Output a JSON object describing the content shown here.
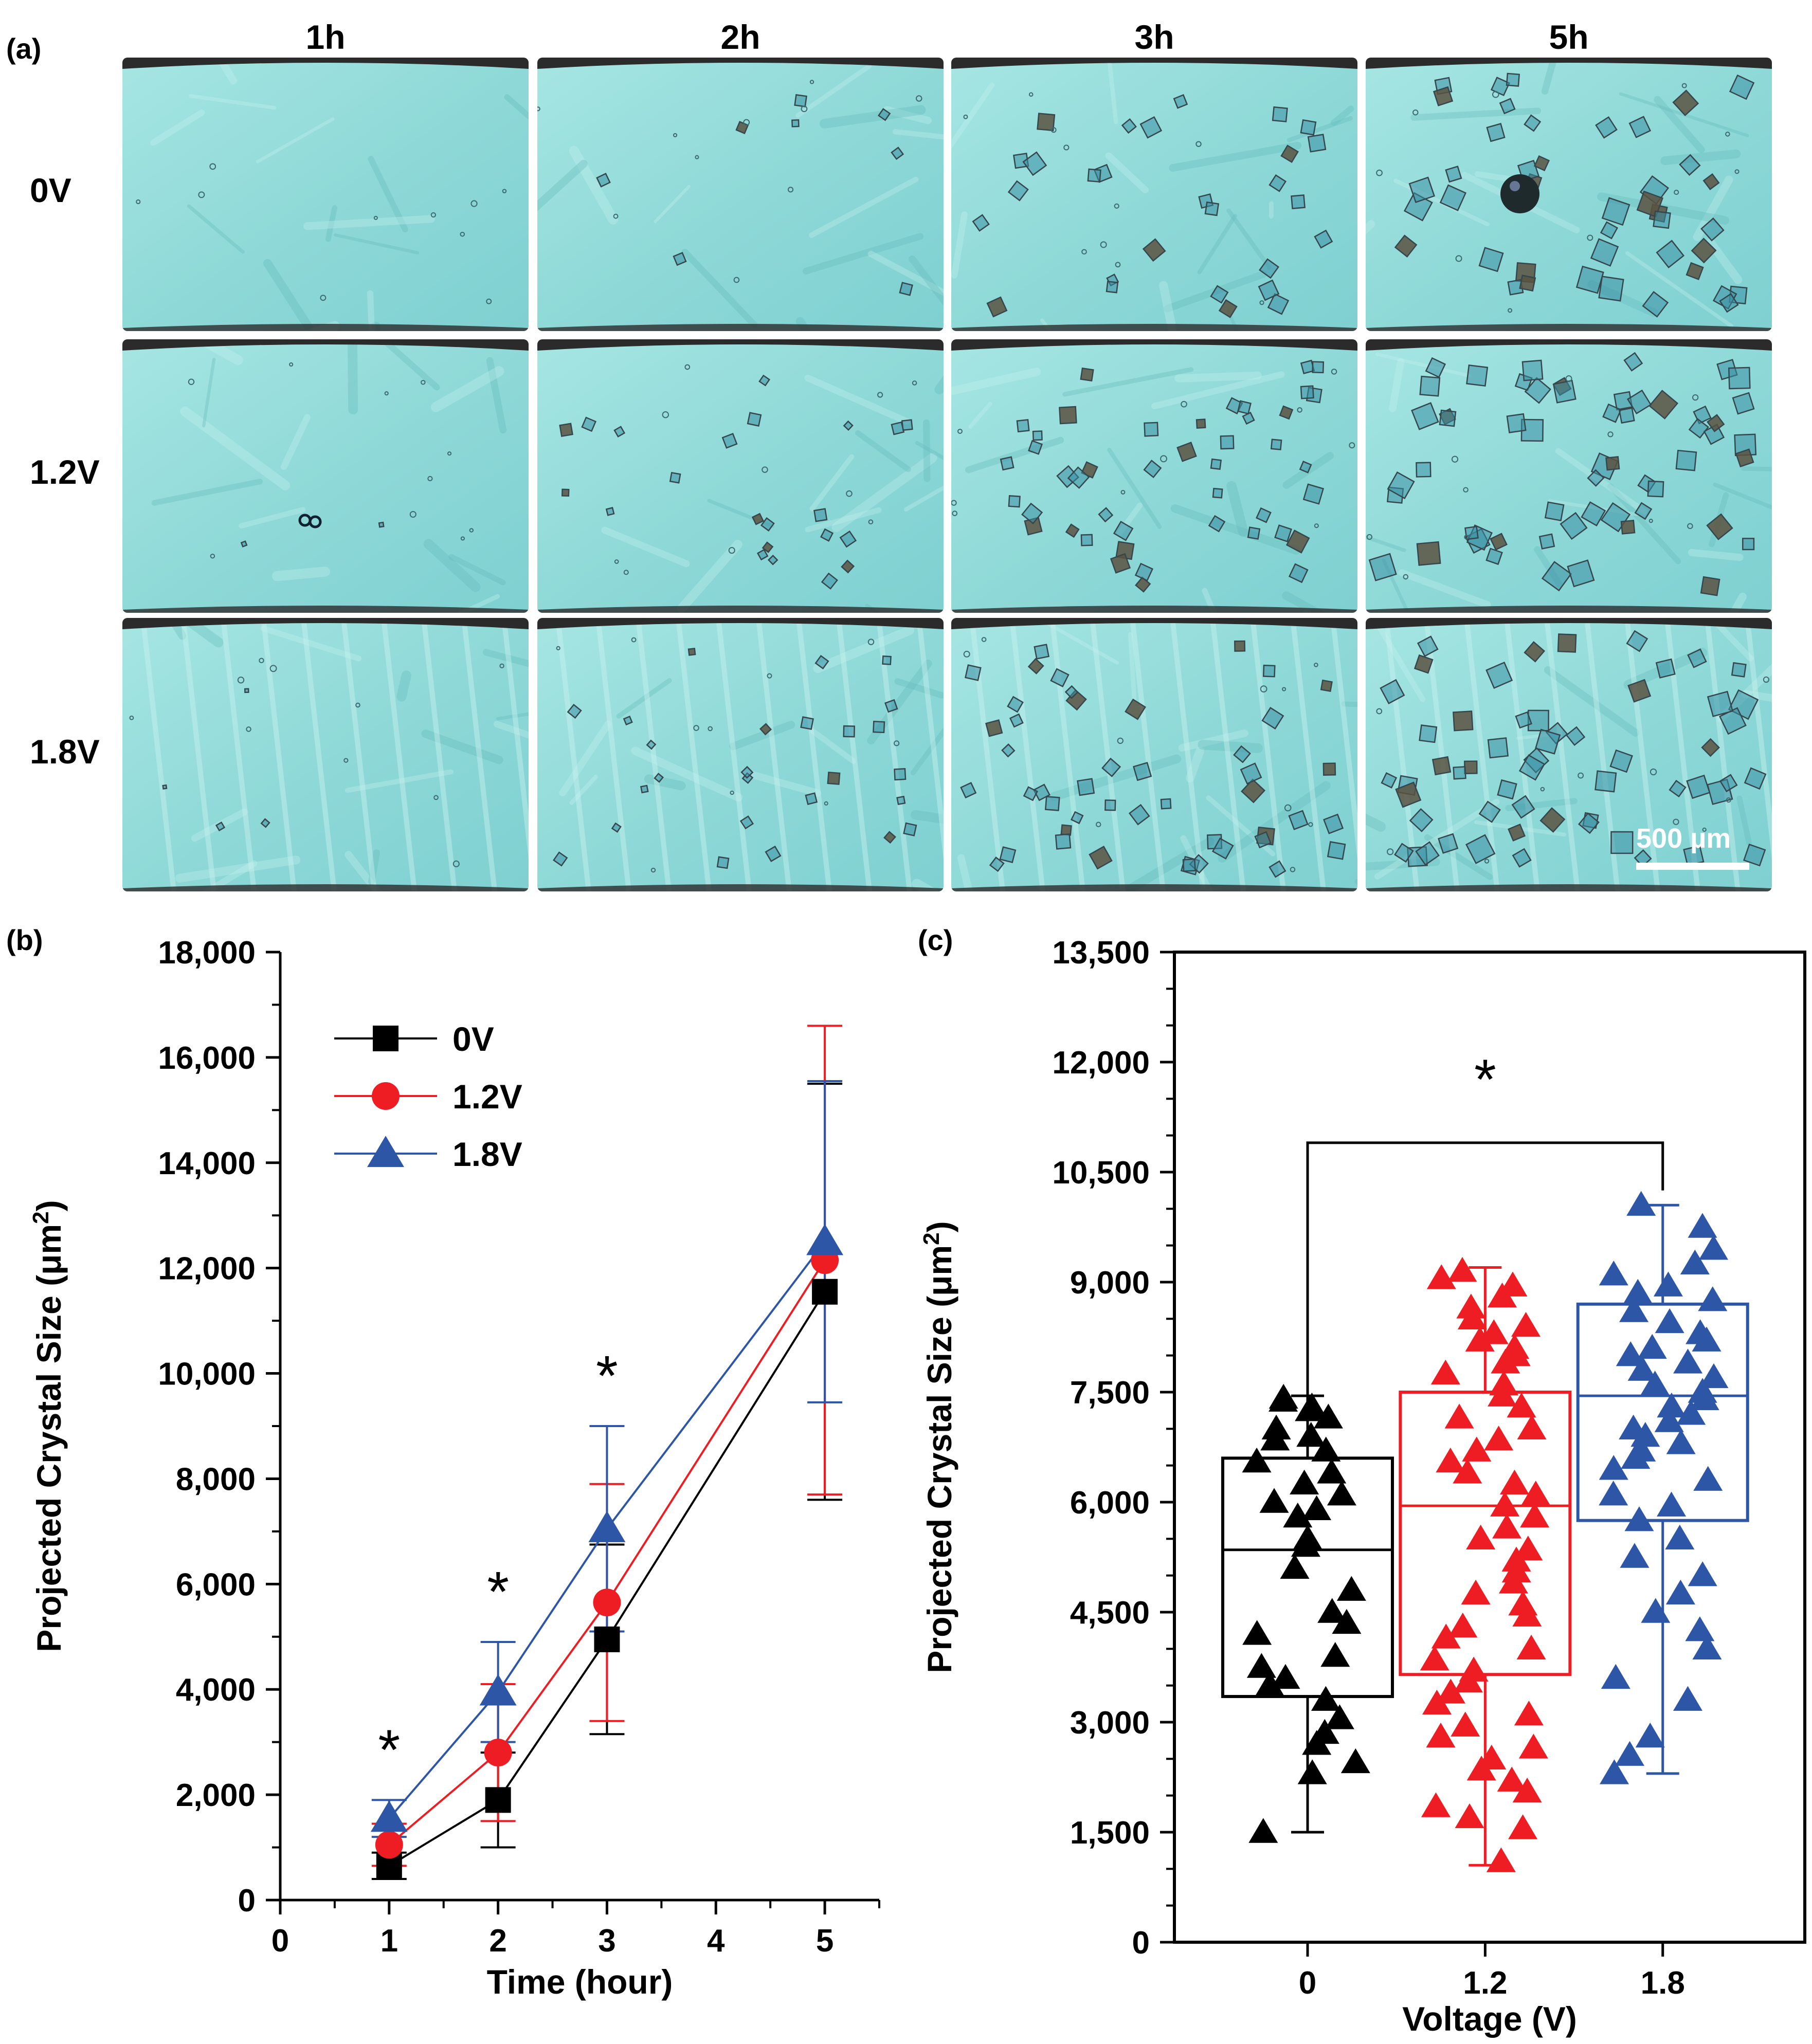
{
  "panel_a": {
    "label": "(a)",
    "columns": [
      "1h",
      "2h",
      "3h",
      "5h"
    ],
    "rows": [
      "0V",
      "1.2V",
      "1.8V"
    ],
    "scale_bar": "500 µm",
    "crystal_density": [
      [
        0,
        8,
        28,
        42
      ],
      [
        2,
        22,
        44,
        56
      ],
      [
        4,
        26,
        46,
        56
      ]
    ],
    "colors": {
      "field": "#8fd9d8",
      "field_dark": "#63b9bb",
      "crystal": "#36464d",
      "edge": "#2b2b2b"
    }
  },
  "panel_b": {
    "label": "(b)",
    "star": "*",
    "chart_data": {
      "type": "line",
      "xlabel": "Time (hour)",
      "ylabel": "Projected Crystal Size (μm²)",
      "x_ticks": [
        0,
        1,
        2,
        3,
        4,
        5
      ],
      "y_ticks": [
        0,
        2000,
        4000,
        6000,
        8000,
        10000,
        12000,
        14000,
        16000,
        18000
      ],
      "y_tick_labels": [
        "0",
        "2,000",
        "4,000",
        "6,000",
        "8,000",
        "10,000",
        "12,000",
        "14,000",
        "16,000",
        "18,000"
      ],
      "xlim": [
        0,
        5.5
      ],
      "ylim": [
        0,
        18000
      ],
      "x": [
        1,
        2,
        3,
        5
      ],
      "series": [
        {
          "name": "0V",
          "color": "#000000",
          "marker": "square",
          "values": [
            650,
            1900,
            4950,
            11550
          ],
          "errors": [
            250,
            900,
            1800,
            3950
          ]
        },
        {
          "name": "1.2V",
          "color": "#ee1d23",
          "marker": "circle",
          "values": [
            1050,
            2800,
            5650,
            12150
          ],
          "errors": [
            400,
            1300,
            2250,
            4450
          ]
        },
        {
          "name": "1.8V",
          "color": "#2d56a6",
          "marker": "triangle",
          "values": [
            1550,
            3950,
            7050,
            12500
          ],
          "errors": [
            350,
            950,
            1950,
            3050
          ]
        }
      ],
      "significance": [
        1,
        2,
        3
      ],
      "legend": "top-left"
    }
  },
  "panel_c": {
    "label": "(c)",
    "star": "*",
    "chart_data": {
      "type": "box",
      "xlabel": "Voltage (V)",
      "ylabel": "Projected Crystal Size (μm²)",
      "categories": [
        "0",
        "1.2",
        "1.8"
      ],
      "y_ticks": [
        0,
        1500,
        3000,
        4500,
        6000,
        7500,
        9000,
        10500,
        12000,
        13500
      ],
      "y_tick_labels": [
        "0",
        "1,500",
        "3,000",
        "4,500",
        "6,000",
        "7,500",
        "9,000",
        "10,500",
        "12,000",
        "13,500"
      ],
      "ylim": [
        0,
        13500
      ],
      "boxes": [
        {
          "name": "0",
          "color": "#000000",
          "q1": 3350,
          "median": 5350,
          "q3": 6600,
          "whisker_low": 1500,
          "whisker_high": 7450,
          "points": [
            7420,
            7380,
            7300,
            7250,
            7150,
            7000,
            6900,
            6850,
            6700,
            6550,
            6400,
            6250,
            6100,
            6000,
            5900,
            5800,
            5500,
            5400,
            5100,
            4800,
            4500,
            4350,
            4200,
            3900,
            3750,
            3600,
            3500,
            3300,
            3050,
            2850,
            2700,
            2450,
            2300,
            1500
          ]
        },
        {
          "name": "1.2",
          "color": "#ee1d23",
          "q1": 3650,
          "median": 5950,
          "q3": 7500,
          "whisker_low": 1050,
          "whisker_high": 9200,
          "points": [
            9150,
            9050,
            8950,
            8800,
            8650,
            8500,
            8400,
            8300,
            8200,
            8100,
            8000,
            7900,
            7750,
            7600,
            7450,
            7300,
            7150,
            7000,
            6850,
            6700,
            6550,
            6400,
            6250,
            6100,
            5950,
            5800,
            5650,
            5500,
            5350,
            5200,
            5050,
            4900,
            4750,
            4600,
            4450,
            4300,
            4150,
            4000,
            3850,
            3700,
            3550,
            3400,
            3250,
            3100,
            2950,
            2800,
            2650,
            2500,
            2350,
            2200,
            2050,
            1850,
            1700,
            1550,
            1100
          ]
        },
        {
          "name": "1.8",
          "color": "#2d56a6",
          "q1": 5750,
          "median": 7450,
          "q3": 8700,
          "whisker_low": 2300,
          "whisker_high": 10050,
          "points": [
            10050,
            9750,
            9450,
            9250,
            9100,
            8950,
            8850,
            8750,
            8600,
            8450,
            8300,
            8200,
            8100,
            8000,
            7900,
            7800,
            7700,
            7600,
            7500,
            7400,
            7300,
            7200,
            7100,
            7000,
            6900,
            6800,
            6700,
            6600,
            6450,
            6300,
            6100,
            5950,
            5750,
            5500,
            5250,
            5000,
            4750,
            4500,
            4250,
            4000,
            3600,
            3300,
            2800,
            2550,
            2300
          ]
        }
      ],
      "significance": {
        "from": "0",
        "to": "1.8"
      }
    }
  }
}
